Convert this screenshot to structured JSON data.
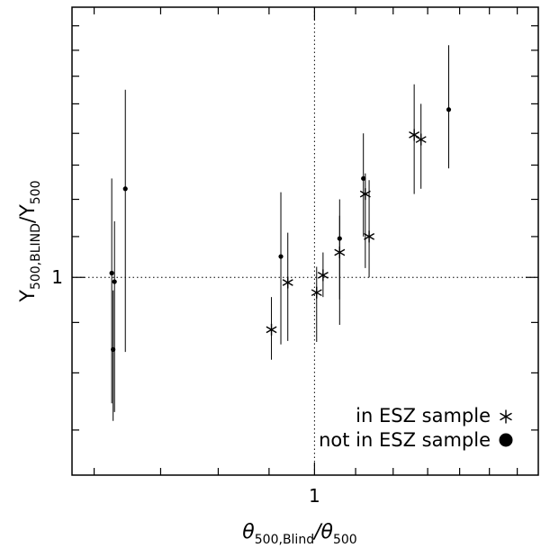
{
  "chart_data": {
    "type": "scatter",
    "xscale": "log",
    "yscale": "log",
    "xlim": [
      0.57,
      1.68
    ],
    "ylim": [
      0.63,
      1.88
    ],
    "xticks": [
      {
        "value": 1,
        "label": "1"
      }
    ],
    "yticks": [
      {
        "value": 1,
        "label": "1"
      }
    ],
    "xlabel": {
      "main": "θ",
      "sub": "500,Blind",
      "slash": "/θ",
      "sub2": "500"
    },
    "ylabel": {
      "main": "Y",
      "sub": "500,BLIND",
      "slash": "/Y",
      "sub2": "500"
    },
    "reference_lines": {
      "x": 1,
      "y": 1,
      "style": "dotted"
    },
    "grid": false,
    "legend": {
      "position": "bottom-right",
      "entries": [
        {
          "label": "in  ESZ  sample",
          "marker": "asterisk"
        },
        {
          "label": "not  in  ESZ  sample",
          "marker": "filled-circle"
        }
      ]
    },
    "series": [
      {
        "name": "in ESZ sample",
        "marker": "asterisk",
        "points": [
          {
            "x": 0.905,
            "y": 0.885,
            "ylow": 0.825,
            "yhigh": 0.955
          },
          {
            "x": 0.94,
            "y": 0.988,
            "ylow": 0.862,
            "yhigh": 1.11
          },
          {
            "x": 1.005,
            "y": 0.965,
            "ylow": 0.86,
            "yhigh": 1.025
          },
          {
            "x": 1.02,
            "y": 1.005,
            "ylow": 0.955,
            "yhigh": 1.06
          },
          {
            "x": 1.06,
            "y": 1.06,
            "ylow": 0.95,
            "yhigh": 1.2
          },
          {
            "x": 1.125,
            "y": 1.215,
            "ylow": 1.022,
            "yhigh": 1.275
          },
          {
            "x": 1.135,
            "y": 1.1,
            "ylow": 1.0,
            "yhigh": 1.255
          },
          {
            "x": 1.26,
            "y": 1.395,
            "ylow": 1.215,
            "yhigh": 1.57
          },
          {
            "x": 1.28,
            "y": 1.38,
            "ylow": 1.23,
            "yhigh": 1.5
          }
        ]
      },
      {
        "name": "not in ESZ sample",
        "marker": "filled-circle",
        "points": [
          {
            "x": 0.625,
            "y": 1.01,
            "ylow": 0.745,
            "yhigh": 1.26
          },
          {
            "x": 0.627,
            "y": 0.845,
            "ylow": 0.715,
            "yhigh": 0.97
          },
          {
            "x": 0.629,
            "y": 0.99,
            "ylow": 0.73,
            "yhigh": 1.14
          },
          {
            "x": 0.645,
            "y": 1.23,
            "ylow": 0.84,
            "yhigh": 1.55
          },
          {
            "x": 0.925,
            "y": 1.05,
            "ylow": 0.855,
            "yhigh": 1.22
          },
          {
            "x": 1.06,
            "y": 1.095,
            "ylow": 0.895,
            "yhigh": 1.155
          },
          {
            "x": 1.12,
            "y": 1.26,
            "ylow": 1.1,
            "yhigh": 1.4
          },
          {
            "x": 1.365,
            "y": 1.48,
            "ylow": 1.29,
            "yhigh": 1.72
          }
        ]
      }
    ]
  }
}
